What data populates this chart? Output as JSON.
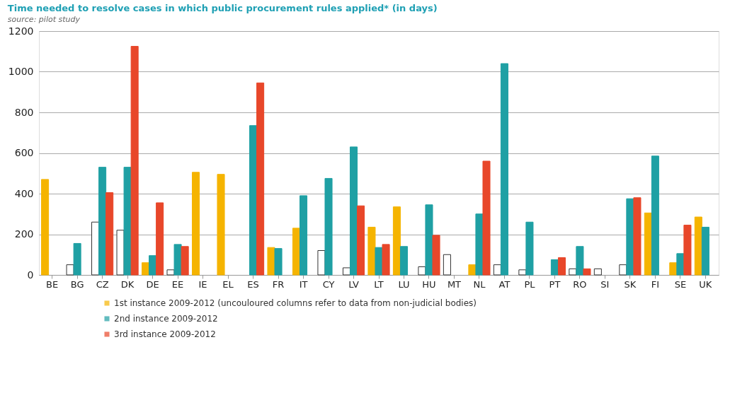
{
  "chart_data": {
    "type": "bar",
    "title": "Time needed to resolve cases in which public procurement rules applied* (in days)",
    "subtitle": "source: pilot study",
    "categories": [
      "BE",
      "BG",
      "CZ",
      "DK",
      "DE",
      "EE",
      "IE",
      "EL",
      "ES",
      "FR",
      "IT",
      "CY",
      "LV",
      "LT",
      "LU",
      "HU",
      "MT",
      "NL",
      "AT",
      "PL",
      "PT",
      "RO",
      "SI",
      "SK",
      "FI",
      "SE",
      "UK"
    ],
    "series": [
      {
        "name": "1st instance 2009-2012 (uncouloured columns refer to data from non-judicial bodies)",
        "color": "#f5b400",
        "values": [
          470,
          50,
          260,
          220,
          60,
          25,
          505,
          495,
          null,
          135,
          230,
          120,
          35,
          235,
          335,
          40,
          100,
          50,
          50,
          25,
          null,
          30,
          30,
          50,
          305,
          60,
          285
        ],
        "colors": [
          "#f5b400",
          "#ffffff",
          "#ffffff",
          "#ffffff",
          "#f5b400",
          "#ffffff",
          "#f5b400",
          "#f5b400",
          "#f5b400",
          "#f5b400",
          "#f5b400",
          "#ffffff",
          "#ffffff",
          "#f5b400",
          "#f5b400",
          "#ffffff",
          "#ffffff",
          "#f5b400",
          "#ffffff",
          "#ffffff",
          "#f5b400",
          "#ffffff",
          "#ffffff",
          "#ffffff",
          "#f5b400",
          "#f5b400",
          "#f5b400"
        ]
      },
      {
        "name": "2nd instance 2009-2012",
        "color": "#1fa0a4",
        "values": [
          null,
          155,
          530,
          530,
          95,
          150,
          null,
          null,
          735,
          130,
          390,
          475,
          630,
          135,
          140,
          345,
          null,
          300,
          1040,
          260,
          75,
          140,
          null,
          375,
          585,
          105,
          235
        ]
      },
      {
        "name": "3rd instance 2009-2012",
        "color": "#e8472a",
        "values": [
          null,
          null,
          405,
          1125,
          355,
          140,
          null,
          null,
          945,
          null,
          null,
          null,
          340,
          150,
          null,
          195,
          null,
          560,
          null,
          null,
          85,
          30,
          null,
          380,
          null,
          245,
          null
        ]
      }
    ],
    "ylim": [
      0,
      1200
    ],
    "yticks": [
      0,
      200,
      400,
      600,
      800,
      1000,
      1200
    ],
    "grid": "y",
    "legend": "bottom left"
  }
}
